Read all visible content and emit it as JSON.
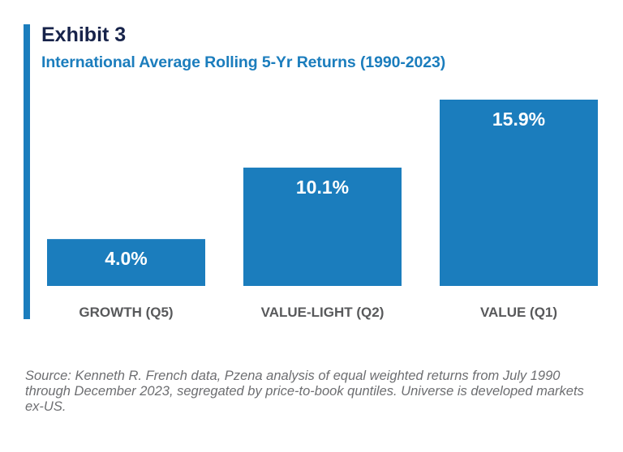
{
  "header": {
    "exhibit": "Exhibit 3",
    "subtitle": "International Average Rolling 5-Yr Returns (1990-2023)"
  },
  "colors": {
    "accent": "#1b7dbd",
    "bar": "#1b7dbd",
    "title": "#17234a",
    "category_label": "#58595b",
    "value_label": "#ffffff",
    "note": "#6d6e71"
  },
  "chart_data": {
    "type": "bar",
    "categories": [
      "GROWTH (Q5)",
      "VALUE-LIGHT (Q2)",
      "VALUE (Q1)"
    ],
    "values": [
      4.0,
      10.1,
      15.9
    ],
    "data_labels": [
      "4.0%",
      "10.1%",
      "15.9%"
    ],
    "title": "International Average Rolling 5-Yr Returns (1990-2023)",
    "xlabel": "",
    "ylabel": "",
    "unit": "%",
    "ylim": [
      0,
      16
    ],
    "grid": false,
    "legend": "none"
  },
  "footnote": {
    "text": "Source: Kenneth R. French data, Pzena analysis of equal weighted returns from July 1990 through December 2023, segregated by price-to-book quntiles. Universe is developed markets ex-US."
  }
}
